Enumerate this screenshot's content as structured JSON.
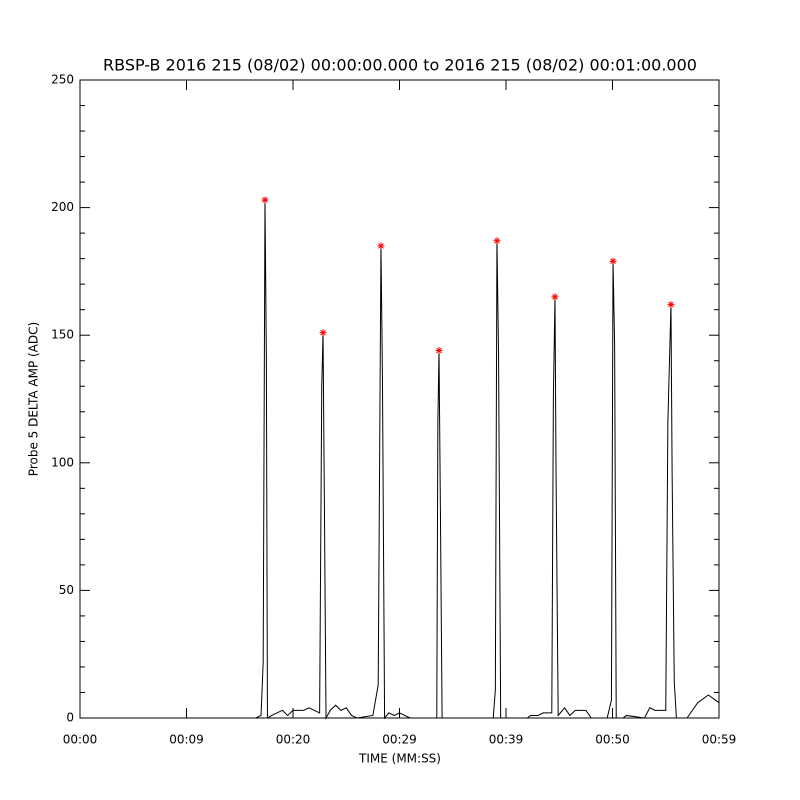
{
  "chart_data": {
    "type": "line",
    "title": "RBSP-B 2016 215 (08/02) 00:00:00.000 to 2016 215 (08/02) 00:01:00.000",
    "x_label": "TIME (MM:SS)",
    "y_label": "Probe 5 DELTA AMP (ADC)",
    "xlim": [
      0,
      60
    ],
    "ylim": [
      0,
      250
    ],
    "xticks": [
      {
        "value": 0,
        "label": "00:00"
      },
      {
        "value": 10,
        "label": "00:09"
      },
      {
        "value": 20,
        "label": "00:20"
      },
      {
        "value": 30,
        "label": "00:29"
      },
      {
        "value": 40,
        "label": "00:39"
      },
      {
        "value": 50,
        "label": "00:50"
      },
      {
        "value": 60,
        "label": "00:59"
      }
    ],
    "yticks": [
      0,
      50,
      100,
      150,
      200,
      250
    ],
    "y_minor_ticks": [
      10,
      20,
      30,
      40,
      60,
      70,
      80,
      90,
      110,
      120,
      130,
      140,
      160,
      170,
      180,
      190,
      210,
      220,
      230,
      240
    ],
    "grid": false,
    "series": [
      {
        "name": "trace",
        "color": "#000000",
        "marker": "none",
        "x": [
          0,
          16.5,
          17.0,
          17.2,
          17.37,
          17.5,
          17.6,
          18,
          19,
          19.5,
          20,
          21,
          21.5,
          22,
          22.5,
          22.7,
          22.82,
          22.95,
          23.1,
          23.5,
          24,
          24.5,
          25,
          25.5,
          26,
          27.5,
          28.0,
          28.26,
          28.4,
          28.6,
          29,
          29.5,
          30,
          31,
          33.5,
          33.6,
          33.71,
          33.85,
          34,
          38.8,
          39.0,
          39.15,
          39.3,
          39.5,
          42,
          42.3,
          43,
          43.5,
          44.3,
          44.45,
          44.6,
          44.7,
          44.9,
          45.5,
          46,
          46.5,
          47.5,
          48,
          49.5,
          49.9,
          50.05,
          50.2,
          50.35,
          51,
          51.3,
          53,
          53.5,
          54,
          55,
          55.2,
          55.49,
          55.6,
          55.8,
          56,
          57,
          58,
          59,
          60
        ],
        "values": [
          0,
          0,
          1,
          22,
          203,
          140,
          0,
          1,
          3,
          1,
          3,
          3,
          4,
          3,
          2,
          130,
          151,
          83,
          0,
          3,
          5,
          3,
          4,
          1,
          0,
          1,
          13,
          185,
          133,
          0,
          2,
          1,
          2,
          0,
          0,
          115,
          144,
          77,
          0,
          0,
          11,
          187,
          143,
          0,
          0,
          1,
          1,
          2,
          2,
          126,
          165,
          95,
          1,
          4,
          1,
          3,
          3,
          0,
          0,
          7,
          179,
          146,
          0,
          0,
          1,
          0,
          4,
          3,
          3,
          116,
          162,
          95,
          14,
          0,
          0,
          6,
          9,
          6
        ]
      },
      {
        "name": "peaks",
        "color": "#ff0000",
        "marker": "star",
        "x": [
          17.37,
          22.82,
          28.26,
          33.71,
          39.15,
          44.6,
          50.05,
          55.49
        ],
        "values": [
          203,
          151,
          185,
          144,
          187,
          165,
          179,
          162
        ]
      }
    ]
  }
}
